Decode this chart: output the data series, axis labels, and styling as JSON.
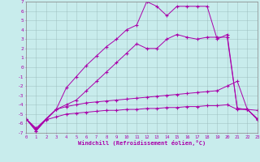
{
  "background_color": "#c8ecec",
  "line_color": "#aa00aa",
  "xlabel": "Windchill (Refroidissement éolien,°C)",
  "xlim": [
    0,
    23
  ],
  "ylim": [
    -7,
    7
  ],
  "xticks": [
    0,
    1,
    2,
    3,
    4,
    5,
    6,
    7,
    8,
    9,
    10,
    11,
    12,
    13,
    14,
    15,
    16,
    17,
    18,
    19,
    20,
    21,
    22,
    23
  ],
  "yticks": [
    -7,
    -6,
    -5,
    -4,
    -3,
    -2,
    -1,
    0,
    1,
    2,
    3,
    4,
    5,
    6,
    7
  ],
  "line1_x": [
    0,
    1,
    2,
    3,
    4,
    5,
    6,
    7,
    8,
    9,
    10,
    11,
    12,
    13,
    14,
    15,
    16,
    17,
    18,
    19,
    20,
    21,
    22,
    23
  ],
  "line1_y": [
    -5.5,
    -6.8,
    -5.6,
    -5.3,
    -5.0,
    -4.9,
    -4.8,
    -4.7,
    -4.6,
    -4.6,
    -4.5,
    -4.5,
    -4.4,
    -4.4,
    -4.3,
    -4.3,
    -4.2,
    -4.2,
    -4.1,
    -4.1,
    -4.0,
    -4.5,
    -4.5,
    -5.6
  ],
  "line2_x": [
    0,
    1,
    2,
    3,
    4,
    5,
    6,
    7,
    8,
    9,
    10,
    11,
    12,
    13,
    14,
    15,
    16,
    17,
    18,
    19,
    20,
    21,
    22,
    23
  ],
  "line2_y": [
    -5.5,
    -6.6,
    -5.6,
    -4.5,
    -4.2,
    -4.0,
    -3.8,
    -3.7,
    -3.6,
    -3.5,
    -3.4,
    -3.3,
    -3.2,
    -3.1,
    -3.0,
    -2.9,
    -2.8,
    -2.7,
    -2.6,
    -2.5,
    -2.0,
    -1.5,
    -4.5,
    -4.6
  ],
  "line3_x": [
    0,
    1,
    2,
    3,
    4,
    5,
    6,
    7,
    8,
    9,
    10,
    11,
    12,
    13,
    14,
    15,
    16,
    17,
    18,
    19,
    20,
    21,
    22,
    23
  ],
  "line3_y": [
    -5.5,
    -6.5,
    -5.5,
    -4.5,
    -4.0,
    -3.5,
    -2.5,
    -1.5,
    -0.5,
    0.5,
    1.5,
    2.5,
    2.0,
    2.0,
    3.0,
    3.5,
    3.2,
    3.0,
    3.2,
    3.2,
    3.2,
    -4.4,
    -4.5,
    -5.5
  ],
  "line4_x": [
    0,
    1,
    2,
    3,
    4,
    5,
    6,
    7,
    8,
    9,
    10,
    11,
    12,
    13,
    14,
    15,
    16,
    17,
    18,
    19,
    20,
    21,
    22,
    23
  ],
  "line4_y": [
    -5.5,
    -6.8,
    -5.5,
    -4.5,
    -2.2,
    -1.0,
    0.2,
    1.2,
    2.2,
    3.0,
    4.0,
    4.5,
    7.0,
    6.5,
    5.5,
    6.5,
    6.5,
    6.5,
    6.5,
    3.0,
    3.5,
    -4.4,
    -4.5,
    -5.5
  ]
}
